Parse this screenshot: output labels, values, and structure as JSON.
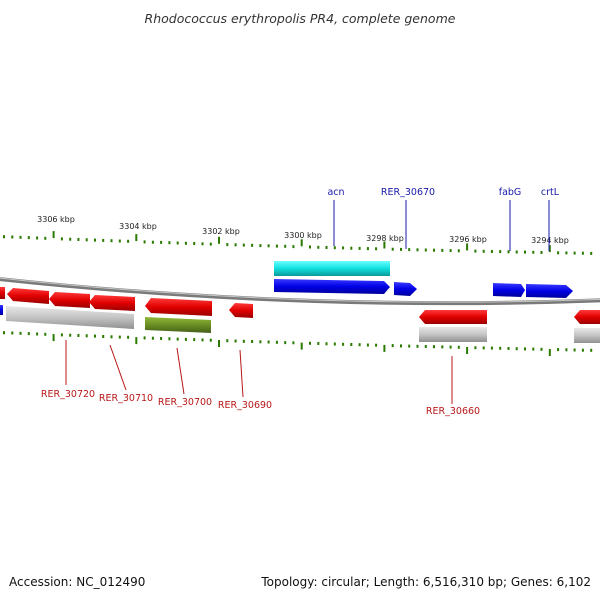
{
  "title": "Rhodococcus erythropolis PR4, complete genome",
  "accession": "Accession: NC_012490",
  "summary": "Topology: circular; Length: 6,516,310 bp; Genes: 6,102",
  "scale_labels": [
    "3306 kbp",
    "3304 kbp",
    "3302 kbp",
    "3300 kbp",
    "3298 kbp",
    "3296 kbp",
    "3294 kbp"
  ],
  "top_genes": [
    {
      "label": "acn",
      "color": "#1a1aa8"
    },
    {
      "label": "RER_30670",
      "color": "#1a1aa8"
    },
    {
      "label": "fabG",
      "color": "#1a1aa8"
    },
    {
      "label": "crtL",
      "color": "#1a1aa8"
    }
  ],
  "bottom_genes": [
    {
      "label": "RER_30720",
      "color": "#b81818"
    },
    {
      "label": "RER_30710",
      "color": "#b81818"
    },
    {
      "label": "RER_30700",
      "color": "#b81818"
    },
    {
      "label": "RER_30690",
      "color": "#b81818"
    },
    {
      "label": "RER_30660",
      "color": "#b81818"
    }
  ],
  "colors": {
    "forward_cds": "#1010e0",
    "reverse_cds": "#e01010",
    "rna_cyan": "#10e0e0",
    "gene_grey": "#bdbdbd",
    "gene_olive": "#6b8e23",
    "backbone": "#808080",
    "ticks": "#2a7a00"
  }
}
